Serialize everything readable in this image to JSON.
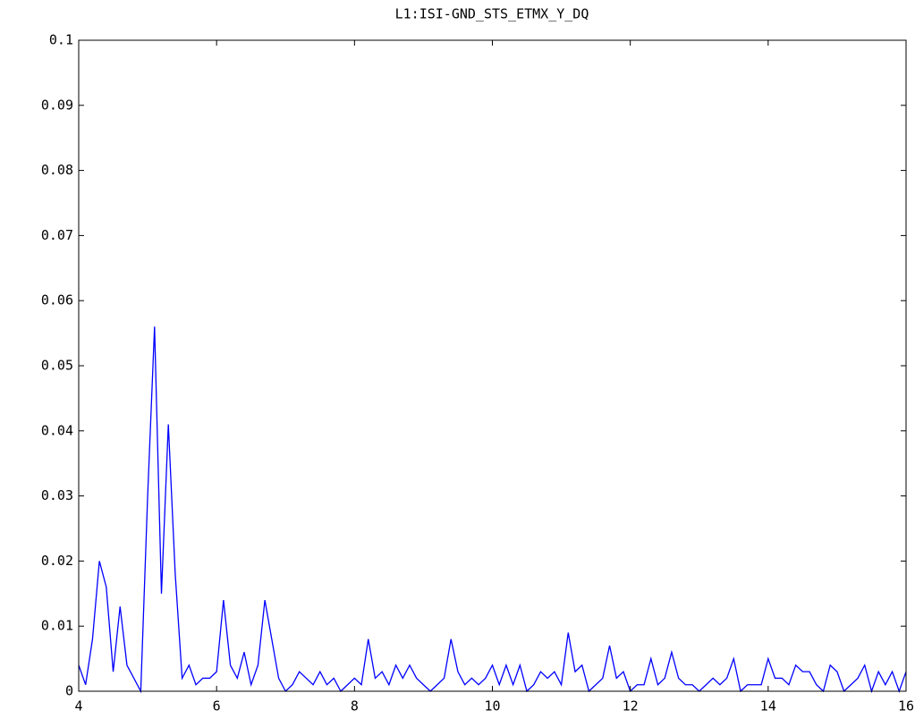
{
  "chart_data": {
    "type": "line",
    "title": "L1:ISI-GND_STS_ETMX_Y_DQ",
    "x": [
      4.0,
      4.1,
      4.2,
      4.3,
      4.4,
      4.5,
      4.6,
      4.7,
      4.8,
      4.9,
      5.0,
      5.1,
      5.2,
      5.3,
      5.4,
      5.5,
      5.6,
      5.7,
      5.8,
      5.9,
      6.0,
      6.1,
      6.2,
      6.3,
      6.4,
      6.5,
      6.6,
      6.7,
      6.8,
      6.9,
      7.0,
      7.1,
      7.2,
      7.3,
      7.4,
      7.5,
      7.6,
      7.7,
      7.8,
      7.9,
      8.0,
      8.1,
      8.2,
      8.3,
      8.4,
      8.5,
      8.6,
      8.7,
      8.8,
      8.9,
      9.0,
      9.1,
      9.2,
      9.3,
      9.4,
      9.5,
      9.6,
      9.7,
      9.8,
      9.9,
      10.0,
      10.1,
      10.2,
      10.3,
      10.4,
      10.5,
      10.6,
      10.7,
      10.8,
      10.9,
      11.0,
      11.1,
      11.2,
      11.3,
      11.4,
      11.5,
      11.6,
      11.7,
      11.8,
      11.9,
      12.0,
      12.1,
      12.2,
      12.3,
      12.4,
      12.5,
      12.6,
      12.7,
      12.8,
      12.9,
      13.0,
      13.1,
      13.2,
      13.3,
      13.4,
      13.5,
      13.6,
      13.7,
      13.8,
      13.9,
      14.0,
      14.1,
      14.2,
      14.3,
      14.4,
      14.5,
      14.6,
      14.7,
      14.8,
      14.9,
      15.0,
      15.1,
      15.2,
      15.3,
      15.4,
      15.5,
      15.6,
      15.7,
      15.8,
      15.9,
      16.0
    ],
    "values": [
      0.004,
      0.001,
      0.008,
      0.02,
      0.016,
      0.003,
      0.013,
      0.004,
      0.002,
      0.0,
      0.03,
      0.056,
      0.015,
      0.041,
      0.018,
      0.002,
      0.004,
      0.001,
      0.002,
      0.002,
      0.003,
      0.014,
      0.004,
      0.002,
      0.006,
      0.001,
      0.004,
      0.014,
      0.008,
      0.002,
      0.0,
      0.001,
      0.003,
      0.002,
      0.001,
      0.003,
      0.001,
      0.002,
      0.0,
      0.001,
      0.002,
      0.001,
      0.008,
      0.002,
      0.003,
      0.001,
      0.004,
      0.002,
      0.004,
      0.002,
      0.001,
      0.0,
      0.001,
      0.002,
      0.008,
      0.003,
      0.001,
      0.002,
      0.001,
      0.002,
      0.004,
      0.001,
      0.004,
      0.001,
      0.004,
      0.0,
      0.001,
      0.003,
      0.002,
      0.003,
      0.001,
      0.009,
      0.003,
      0.004,
      0.0,
      0.001,
      0.002,
      0.007,
      0.002,
      0.003,
      0.0,
      0.001,
      0.001,
      0.005,
      0.001,
      0.002,
      0.006,
      0.002,
      0.001,
      0.001,
      0.0,
      0.001,
      0.002,
      0.001,
      0.002,
      0.005,
      0.0,
      0.001,
      0.001,
      0.001,
      0.005,
      0.002,
      0.002,
      0.001,
      0.004,
      0.003,
      0.003,
      0.001,
      0.0,
      0.004,
      0.003,
      0.0,
      0.001,
      0.002,
      0.004,
      0.0,
      0.003,
      0.001,
      0.003,
      0.0,
      0.003
    ],
    "color": "#0000ff",
    "xlim": [
      4,
      16
    ],
    "xticks": [
      4,
      6,
      8,
      10,
      12,
      14,
      16
    ],
    "ylim": [
      0,
      0.1
    ],
    "yticks": [
      0,
      0.01,
      0.02,
      0.03,
      0.04,
      0.05,
      0.06,
      0.07,
      0.08,
      0.09,
      0.1
    ]
  }
}
